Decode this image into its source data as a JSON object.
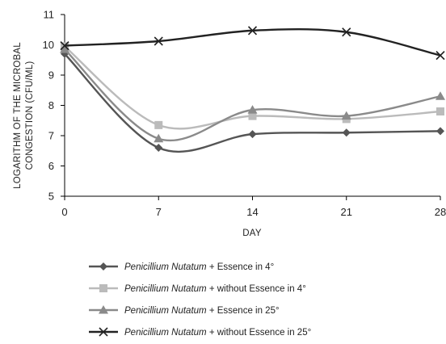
{
  "chart_data": {
    "type": "line",
    "xlabel": "DAY",
    "ylabel_line1": "LOGARITHM OF THE MICROBAL",
    "ylabel_line2": "CONGESTION (CFU/ML)",
    "x": [
      0,
      7,
      14,
      21,
      28
    ],
    "x_tick_labels": [
      "0",
      "7",
      "14",
      "21",
      "28"
    ],
    "xlim": [
      0,
      28
    ],
    "ylim": [
      5,
      11
    ],
    "y_ticks": [
      5,
      6,
      7,
      8,
      9,
      10,
      11
    ],
    "grid": false,
    "legend_position": "bottom",
    "series": [
      {
        "name": "Penicillium Nutatum + Essence in 4°",
        "name_italic": "Penicillium Nutatum",
        "name_rest": " + Essence in 4°",
        "values": [
          9.7,
          6.6,
          7.05,
          7.1,
          7.15
        ],
        "color": "#555555",
        "marker": "diamond"
      },
      {
        "name": "Penicillium Nutatum + without Essence in 4°",
        "name_italic": "Penicillium Nutatum",
        "name_rest": " + without Essence in 4°",
        "values": [
          9.95,
          7.35,
          7.65,
          7.55,
          7.8
        ],
        "color": "#bbbbbb",
        "marker": "square"
      },
      {
        "name": "Penicillium Nutatum + Essence in 25°",
        "name_italic": "Penicillium Nutatum",
        "name_rest": " + Essence in 25°",
        "values": [
          9.85,
          6.9,
          7.85,
          7.65,
          8.3
        ],
        "color": "#8a8a8a",
        "marker": "triangle"
      },
      {
        "name": "Penicillium Nutatum + without Essence in 25°",
        "name_italic": "Penicillium Nutatum",
        "name_rest": " + without Essence in 25°",
        "values": [
          9.97,
          10.12,
          10.47,
          10.42,
          9.65
        ],
        "color": "#222222",
        "marker": "x"
      }
    ]
  }
}
